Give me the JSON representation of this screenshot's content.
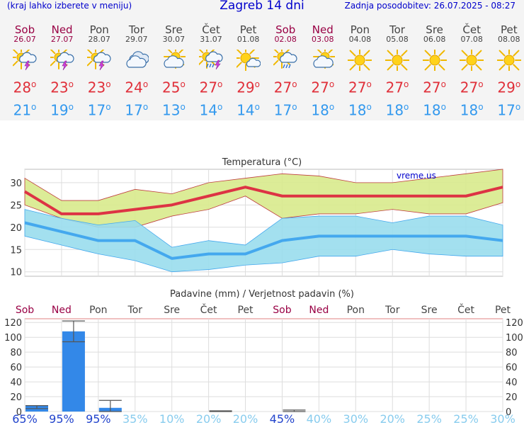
{
  "header": {
    "left_note": "(kraj lahko izberete v meniju)",
    "title": "Zagreb 14 dni",
    "updated": "Zadnja posodobitev: 26.07.2025 - 08:27"
  },
  "days": [
    {
      "name": "Sob",
      "date": "26.07",
      "weekend": true,
      "icon": "sun-cloud-thunder-icon",
      "max": "28",
      "min": "21"
    },
    {
      "name": "Ned",
      "date": "27.07",
      "weekend": true,
      "icon": "sun-cloud-thunder-icon",
      "max": "23",
      "min": "19"
    },
    {
      "name": "Pon",
      "date": "28.07",
      "weekend": false,
      "icon": "sun-cloud-thunder-icon",
      "max": "23",
      "min": "17"
    },
    {
      "name": "Tor",
      "date": "29.07",
      "weekend": false,
      "icon": "cloud-icon",
      "max": "24",
      "min": "17"
    },
    {
      "name": "Sre",
      "date": "30.07",
      "weekend": false,
      "icon": "sun-cloud-icon",
      "max": "25",
      "min": "13"
    },
    {
      "name": "Čet",
      "date": "31.07",
      "weekend": false,
      "icon": "sun-cloud-rain-thunder-icon",
      "max": "27",
      "min": "14"
    },
    {
      "name": "Pet",
      "date": "01.08",
      "weekend": false,
      "icon": "sun-small-cloud-icon",
      "max": "29",
      "min": "14"
    },
    {
      "name": "Sob",
      "date": "02.08",
      "weekend": true,
      "icon": "sun-cloud-rain-icon",
      "max": "27",
      "min": "17"
    },
    {
      "name": "Ned",
      "date": "03.08",
      "weekend": true,
      "icon": "sun-cloud-icon",
      "max": "27",
      "min": "18"
    },
    {
      "name": "Pon",
      "date": "04.08",
      "weekend": false,
      "icon": "sun-icon",
      "max": "27",
      "min": "18"
    },
    {
      "name": "Tor",
      "date": "05.08",
      "weekend": false,
      "icon": "sun-icon",
      "max": "27",
      "min": "18"
    },
    {
      "name": "Sre",
      "date": "06.08",
      "weekend": false,
      "icon": "sun-icon",
      "max": "27",
      "min": "18"
    },
    {
      "name": "Čet",
      "date": "07.08",
      "weekend": false,
      "icon": "sun-icon",
      "max": "27",
      "min": "18"
    },
    {
      "name": "Pet",
      "date": "08.08",
      "weekend": false,
      "icon": "sun-icon",
      "max": "29",
      "min": "17"
    }
  ],
  "colors": {
    "max_line": "#dd3344",
    "max_band": "#d8ea8c",
    "min_line": "#44a8ee",
    "min_band": "#99dded",
    "precip_bar": "#3388e8",
    "weekday_text": "#444444",
    "weekend_text": "#990044",
    "prob_high": "#2244cc",
    "prob_low": "#88ccee"
  },
  "chart_data": [
    {
      "type": "line",
      "title": "Temperatura (°C)",
      "watermark": "vreme.us",
      "x": [
        "Sob",
        "Ned",
        "Pon",
        "Tor",
        "Sre",
        "Čet",
        "Pet",
        "Sob",
        "Ned",
        "Pon",
        "Tor",
        "Sre",
        "Čet",
        "Pet"
      ],
      "ylim": [
        9,
        33
      ],
      "yticks": [
        10,
        15,
        20,
        25,
        30
      ],
      "grid": true,
      "series": [
        {
          "values": [
            28,
            23,
            23,
            24,
            25,
            27,
            29,
            27,
            27,
            27,
            27,
            27,
            27,
            29
          ],
          "range_high": [
            31,
            26,
            26,
            28.5,
            27.5,
            30,
            31,
            32,
            31.5,
            30,
            30,
            31,
            32,
            33
          ],
          "range_low": [
            25,
            22,
            20,
            20,
            22.5,
            24,
            27,
            22,
            23,
            23,
            24,
            23,
            23,
            25.5
          ]
        },
        {
          "values": [
            21,
            19,
            17,
            17,
            13,
            14,
            14,
            17,
            18,
            18,
            18,
            18,
            18,
            17
          ],
          "range_high": [
            24,
            22,
            20.5,
            21.5,
            15.5,
            17,
            16,
            22,
            22.5,
            22.5,
            21,
            22.5,
            22.5,
            20.5
          ],
          "range_low": [
            18,
            16,
            14,
            12.5,
            10,
            10.5,
            11.5,
            12,
            13.5,
            13.5,
            15,
            14,
            13.5,
            13.5
          ]
        }
      ]
    },
    {
      "type": "bar",
      "title": "Padavine (mm) / Verjetnost padavin (%)",
      "categories": [
        "Sob",
        "Ned",
        "Pon",
        "Tor",
        "Sre",
        "Čet",
        "Pet",
        "Sob",
        "Ned",
        "Pon",
        "Tor",
        "Sre",
        "Čet",
        "Pet"
      ],
      "values": [
        8,
        108,
        5,
        0,
        0,
        0,
        0,
        0,
        0,
        0,
        0,
        0,
        0,
        0
      ],
      "error_high": [
        8,
        122,
        15,
        0,
        0,
        1,
        0,
        2,
        0,
        0,
        0,
        0,
        0,
        0
      ],
      "error_low": [
        4,
        94,
        0,
        0,
        0,
        0,
        0,
        0,
        0,
        0,
        0,
        0,
        0,
        0
      ],
      "probability": [
        "65%",
        "95%",
        "95%",
        "35%",
        "10%",
        "20%",
        "20%",
        "45%",
        "40%",
        "30%",
        "20%",
        "25%",
        "25%",
        "30%"
      ],
      "probability_value": [
        65,
        95,
        95,
        35,
        10,
        20,
        20,
        45,
        40,
        30,
        20,
        25,
        25,
        30
      ],
      "ylim": [
        0,
        125
      ],
      "yticks": [
        0,
        20,
        40,
        60,
        80,
        100,
        120
      ]
    }
  ]
}
